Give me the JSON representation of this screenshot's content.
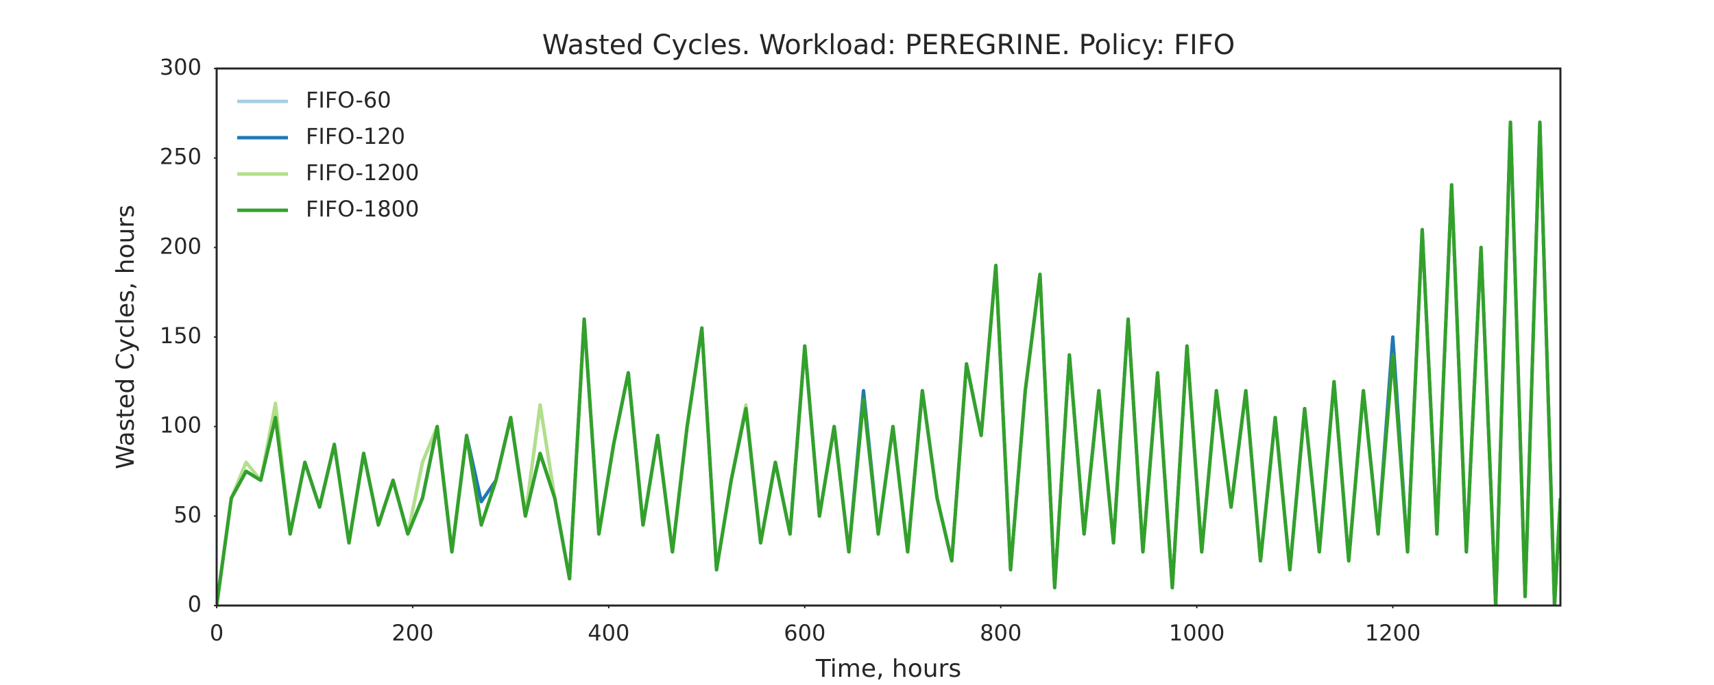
{
  "chart_data": {
    "type": "line",
    "title": "Wasted Cycles. Workload: PEREGRINE. Policy: FIFO",
    "xlabel": "Time, hours",
    "ylabel": "Wasted Cycles, hours",
    "x": [
      0,
      15,
      30,
      45,
      60,
      75,
      90,
      105,
      120,
      135,
      150,
      165,
      180,
      195,
      210,
      225,
      240,
      255,
      270,
      285,
      300,
      315,
      330,
      345,
      360,
      375,
      390,
      405,
      420,
      435,
      450,
      465,
      480,
      495,
      510,
      525,
      540,
      555,
      570,
      585,
      600,
      615,
      630,
      645,
      660,
      675,
      690,
      705,
      720,
      735,
      750,
      765,
      780,
      795,
      810,
      825,
      840,
      855,
      870,
      885,
      900,
      915,
      930,
      945,
      960,
      975,
      990,
      1005,
      1020,
      1035,
      1050,
      1065,
      1080,
      1095,
      1110,
      1125,
      1140,
      1155,
      1170,
      1185,
      1200,
      1215,
      1230,
      1245,
      1260,
      1275,
      1290,
      1305,
      1320,
      1335,
      1350,
      1365,
      1371
    ],
    "series": [
      {
        "name": "FIFO-60",
        "color": "#a6cee3",
        "values": [
          0,
          60,
          75,
          70,
          112,
          40,
          80,
          55,
          90,
          35,
          85,
          45,
          70,
          40,
          80,
          100,
          30,
          95,
          45,
          70,
          105,
          50,
          112,
          60,
          15,
          160,
          40,
          90,
          130,
          45,
          95,
          30,
          100,
          155,
          20,
          70,
          112,
          35,
          80,
          40,
          145,
          50,
          100,
          30,
          115,
          40,
          100,
          30,
          120,
          60,
          25,
          135,
          95,
          190,
          20,
          120,
          185,
          10,
          140,
          40,
          120,
          35,
          160,
          30,
          130,
          10,
          145,
          30,
          120,
          55,
          120,
          25,
          105,
          20,
          110,
          30,
          125,
          25,
          120,
          40,
          140,
          30,
          210,
          40,
          235,
          30,
          200,
          0,
          270,
          5,
          270,
          0,
          60
        ]
      },
      {
        "name": "FIFO-120",
        "color": "#1f78b4",
        "values": [
          0,
          60,
          75,
          70,
          105,
          40,
          80,
          55,
          90,
          35,
          85,
          45,
          70,
          40,
          60,
          100,
          30,
          95,
          58,
          70,
          105,
          50,
          85,
          60,
          15,
          160,
          40,
          90,
          130,
          45,
          95,
          30,
          100,
          155,
          20,
          70,
          110,
          35,
          80,
          40,
          145,
          50,
          100,
          30,
          120,
          40,
          100,
          30,
          120,
          60,
          25,
          135,
          95,
          190,
          20,
          120,
          185,
          10,
          140,
          40,
          120,
          35,
          160,
          30,
          130,
          10,
          145,
          30,
          120,
          55,
          120,
          25,
          105,
          20,
          110,
          30,
          125,
          25,
          120,
          40,
          150,
          30,
          210,
          40,
          235,
          30,
          200,
          0,
          270,
          5,
          270,
          0,
          60
        ]
      },
      {
        "name": "FIFO-1200",
        "color": "#b2df8a",
        "values": [
          0,
          60,
          80,
          70,
          113,
          40,
          80,
          55,
          90,
          35,
          85,
          45,
          70,
          40,
          80,
          100,
          30,
          95,
          45,
          70,
          105,
          50,
          112,
          60,
          15,
          160,
          40,
          90,
          130,
          45,
          95,
          30,
          100,
          155,
          20,
          70,
          112,
          35,
          80,
          40,
          145,
          50,
          100,
          30,
          115,
          40,
          100,
          30,
          120,
          60,
          25,
          135,
          95,
          190,
          20,
          120,
          185,
          10,
          140,
          40,
          120,
          35,
          160,
          30,
          130,
          10,
          145,
          30,
          120,
          55,
          120,
          25,
          105,
          20,
          110,
          30,
          125,
          25,
          120,
          40,
          140,
          30,
          210,
          40,
          235,
          30,
          200,
          0,
          270,
          5,
          270,
          0,
          60
        ]
      },
      {
        "name": "FIFO-1800",
        "color": "#33a02c",
        "values": [
          0,
          60,
          75,
          70,
          105,
          40,
          80,
          55,
          90,
          35,
          85,
          45,
          70,
          40,
          60,
          100,
          30,
          95,
          45,
          70,
          105,
          50,
          85,
          60,
          15,
          160,
          40,
          90,
          130,
          45,
          95,
          30,
          100,
          155,
          20,
          70,
          110,
          35,
          80,
          40,
          145,
          50,
          100,
          30,
          115,
          40,
          100,
          30,
          120,
          60,
          25,
          135,
          95,
          190,
          20,
          120,
          185,
          10,
          140,
          40,
          120,
          35,
          160,
          30,
          130,
          10,
          145,
          30,
          120,
          55,
          120,
          25,
          105,
          20,
          110,
          30,
          125,
          25,
          120,
          40,
          140,
          30,
          210,
          40,
          235,
          30,
          200,
          0,
          270,
          5,
          270,
          0,
          60
        ]
      }
    ],
    "xlim": [
      0,
      1371
    ],
    "ylim": [
      0,
      300
    ],
    "xticks": [
      0,
      200,
      400,
      600,
      800,
      1000,
      1200
    ],
    "yticks": [
      0,
      50,
      100,
      150,
      200,
      250,
      300
    ],
    "legend": "upper left",
    "grid": false
  }
}
